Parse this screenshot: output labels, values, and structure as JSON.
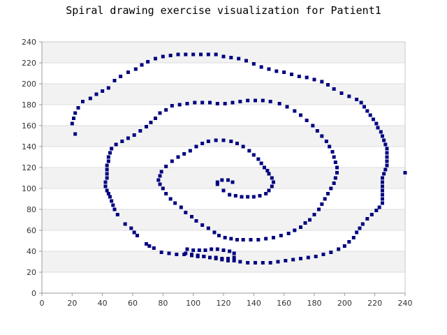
{
  "chart_data": {
    "type": "scatter",
    "title": "Spiral drawing exercise visualization for Patient1",
    "xlabel": "",
    "ylabel": "",
    "xlim": [
      0,
      240
    ],
    "ylim": [
      0,
      240
    ],
    "x_ticks": [
      0,
      20,
      40,
      60,
      80,
      100,
      120,
      140,
      160,
      180,
      200,
      220,
      240
    ],
    "y_ticks": [
      0,
      20,
      40,
      60,
      80,
      100,
      120,
      140,
      160,
      180,
      200,
      220,
      240
    ],
    "grid": true,
    "legend": "none",
    "marker_color": "#000080",
    "band_color": "#f2f2f2",
    "series": [
      {
        "points": [
          [
            116,
            104
          ],
          [
            116,
            106
          ],
          [
            119,
            108
          ],
          [
            123,
            108
          ],
          [
            126,
            106
          ],
          [
            120,
            98
          ],
          [
            124,
            94
          ],
          [
            128,
            93
          ],
          [
            132,
            92
          ],
          [
            136,
            92
          ],
          [
            140,
            92
          ],
          [
            144,
            93
          ],
          [
            148,
            95
          ],
          [
            150,
            98
          ],
          [
            152,
            102
          ],
          [
            153,
            106
          ],
          [
            152,
            110
          ],
          [
            150,
            114
          ],
          [
            149,
            117
          ],
          [
            147,
            120
          ],
          [
            145,
            124
          ],
          [
            143,
            128
          ],
          [
            140,
            132
          ],
          [
            137,
            136
          ],
          [
            133,
            140
          ],
          [
            129,
            143
          ],
          [
            125,
            145
          ],
          [
            120,
            146
          ],
          [
            115,
            146
          ],
          [
            110,
            145
          ],
          [
            106,
            143
          ],
          [
            102,
            140
          ],
          [
            98,
            136
          ],
          [
            94,
            133
          ],
          [
            90,
            130
          ],
          [
            86,
            126
          ],
          [
            82,
            121
          ],
          [
            79,
            116
          ],
          [
            78,
            112
          ],
          [
            77,
            108
          ],
          [
            78,
            104
          ],
          [
            80,
            100
          ],
          [
            82,
            95
          ],
          [
            85,
            90
          ],
          [
            88,
            86
          ],
          [
            92,
            82
          ],
          [
            95,
            77
          ],
          [
            99,
            73
          ],
          [
            102,
            69
          ],
          [
            106,
            65
          ],
          [
            110,
            62
          ],
          [
            114,
            58
          ],
          [
            117,
            55
          ],
          [
            121,
            53
          ],
          [
            125,
            52
          ],
          [
            129,
            51
          ],
          [
            133,
            51
          ],
          [
            138,
            51
          ],
          [
            143,
            51
          ],
          [
            148,
            52
          ],
          [
            153,
            53
          ],
          [
            158,
            55
          ],
          [
            163,
            57
          ],
          [
            167,
            60
          ],
          [
            171,
            63
          ],
          [
            174,
            67
          ],
          [
            177,
            70
          ],
          [
            180,
            75
          ],
          [
            183,
            80
          ],
          [
            185,
            85
          ],
          [
            187,
            90
          ],
          [
            189,
            95
          ],
          [
            191,
            100
          ],
          [
            193,
            105
          ],
          [
            194,
            110
          ],
          [
            195,
            115
          ],
          [
            195,
            120
          ],
          [
            194,
            125
          ],
          [
            193,
            130
          ],
          [
            192,
            135
          ],
          [
            190,
            140
          ],
          [
            188,
            145
          ],
          [
            185,
            150
          ],
          [
            182,
            155
          ],
          [
            179,
            160
          ],
          [
            175,
            165
          ],
          [
            171,
            170
          ],
          [
            167,
            174
          ],
          [
            162,
            178
          ],
          [
            157,
            181
          ],
          [
            151,
            183
          ],
          [
            146,
            184
          ],
          [
            141,
            184
          ],
          [
            136,
            184
          ],
          [
            131,
            183
          ],
          [
            126,
            182
          ],
          [
            121,
            181
          ],
          [
            116,
            181
          ],
          [
            111,
            182
          ],
          [
            106,
            182
          ],
          [
            101,
            182
          ],
          [
            96,
            181
          ],
          [
            91,
            180
          ],
          [
            86,
            179
          ],
          [
            82,
            175
          ],
          [
            78,
            172
          ],
          [
            75,
            167
          ],
          [
            72,
            163
          ],
          [
            69,
            159
          ],
          [
            65,
            155
          ],
          [
            61,
            151
          ],
          [
            57,
            148
          ],
          [
            53,
            145
          ],
          [
            49,
            142
          ],
          [
            46,
            138
          ],
          [
            45,
            134
          ],
          [
            44,
            130
          ],
          [
            44,
            126
          ],
          [
            43,
            122
          ],
          [
            43,
            118
          ],
          [
            43,
            114
          ],
          [
            43,
            110
          ],
          [
            42,
            106
          ],
          [
            42,
            102
          ],
          [
            43,
            98
          ],
          [
            44,
            95
          ],
          [
            45,
            92
          ],
          [
            46,
            88
          ],
          [
            47,
            84
          ],
          [
            48,
            80
          ],
          [
            50,
            75
          ],
          [
            55,
            66
          ],
          [
            59,
            62
          ],
          [
            61,
            58
          ],
          [
            63,
            55
          ],
          [
            69,
            47
          ],
          [
            71,
            45
          ],
          [
            74,
            43
          ],
          [
            79,
            39
          ],
          [
            84,
            38
          ],
          [
            89,
            37
          ],
          [
            94,
            37
          ],
          [
            99,
            36
          ],
          [
            103,
            35
          ],
          [
            107,
            35
          ],
          [
            111,
            34
          ],
          [
            115,
            33
          ],
          [
            119,
            32
          ],
          [
            123,
            31
          ],
          [
            127,
            31
          ],
          [
            131,
            30
          ],
          [
            136,
            29
          ],
          [
            141,
            29
          ],
          [
            146,
            29
          ],
          [
            151,
            29
          ],
          [
            156,
            30
          ],
          [
            161,
            31
          ],
          [
            166,
            32
          ],
          [
            171,
            33
          ],
          [
            176,
            34
          ],
          [
            181,
            35
          ],
          [
            186,
            37
          ],
          [
            191,
            39
          ],
          [
            196,
            42
          ],
          [
            200,
            45
          ],
          [
            203,
            49
          ],
          [
            206,
            53
          ],
          [
            208,
            58
          ],
          [
            210,
            62
          ],
          [
            212,
            66
          ],
          [
            215,
            71
          ],
          [
            218,
            75
          ],
          [
            221,
            79
          ],
          [
            223,
            82
          ],
          [
            225,
            86
          ],
          [
            225,
            90
          ],
          [
            225,
            94
          ],
          [
            225,
            98
          ],
          [
            225,
            102
          ],
          [
            225,
            106
          ],
          [
            225,
            110
          ],
          [
            226,
            114
          ],
          [
            227,
            118
          ],
          [
            228,
            122
          ],
          [
            228,
            126
          ],
          [
            228,
            130
          ],
          [
            228,
            134
          ],
          [
            228,
            138
          ],
          [
            227,
            142
          ],
          [
            226,
            146
          ],
          [
            225,
            150
          ],
          [
            224,
            154
          ],
          [
            222,
            158
          ],
          [
            221,
            162
          ],
          [
            219,
            166
          ],
          [
            217,
            170
          ],
          [
            215,
            174
          ],
          [
            213,
            178
          ],
          [
            211,
            182
          ],
          [
            208,
            185
          ],
          [
            203,
            188
          ],
          [
            198,
            191
          ],
          [
            193,
            195
          ],
          [
            189,
            199
          ],
          [
            185,
            202
          ],
          [
            180,
            204
          ],
          [
            175,
            206
          ],
          [
            170,
            207
          ],
          [
            165,
            209
          ],
          [
            160,
            211
          ],
          [
            155,
            212
          ],
          [
            150,
            214
          ],
          [
            145,
            216
          ],
          [
            140,
            219
          ],
          [
            135,
            222
          ],
          [
            130,
            224
          ],
          [
            125,
            225
          ],
          [
            120,
            226
          ],
          [
            115,
            228
          ],
          [
            110,
            228
          ],
          [
            105,
            228
          ],
          [
            100,
            228
          ],
          [
            95,
            228
          ],
          [
            90,
            228
          ],
          [
            85,
            227
          ],
          [
            80,
            226
          ],
          [
            75,
            224
          ],
          [
            70,
            221
          ],
          [
            66,
            218
          ],
          [
            62,
            214
          ],
          [
            57,
            211
          ],
          [
            52,
            207
          ],
          [
            48,
            203
          ],
          [
            44,
            196
          ],
          [
            40,
            193
          ],
          [
            36,
            190
          ],
          [
            32,
            186
          ],
          [
            27,
            183
          ],
          [
            24,
            177
          ],
          [
            22,
            172
          ],
          [
            21,
            167
          ],
          [
            20,
            162
          ],
          [
            22,
            152
          ],
          [
            96,
            42
          ],
          [
            100,
            41
          ],
          [
            104,
            41
          ],
          [
            108,
            41
          ],
          [
            112,
            42
          ],
          [
            116,
            42
          ],
          [
            120,
            41
          ],
          [
            124,
            40
          ],
          [
            127,
            38
          ],
          [
            127,
            34
          ],
          [
            123,
            33
          ],
          [
            119,
            33
          ],
          [
            115,
            34
          ],
          [
            111,
            34
          ],
          [
            107,
            35
          ],
          [
            103,
            36
          ],
          [
            99,
            37
          ],
          [
            95,
            38
          ],
          [
            240,
            115
          ]
        ]
      }
    ]
  }
}
